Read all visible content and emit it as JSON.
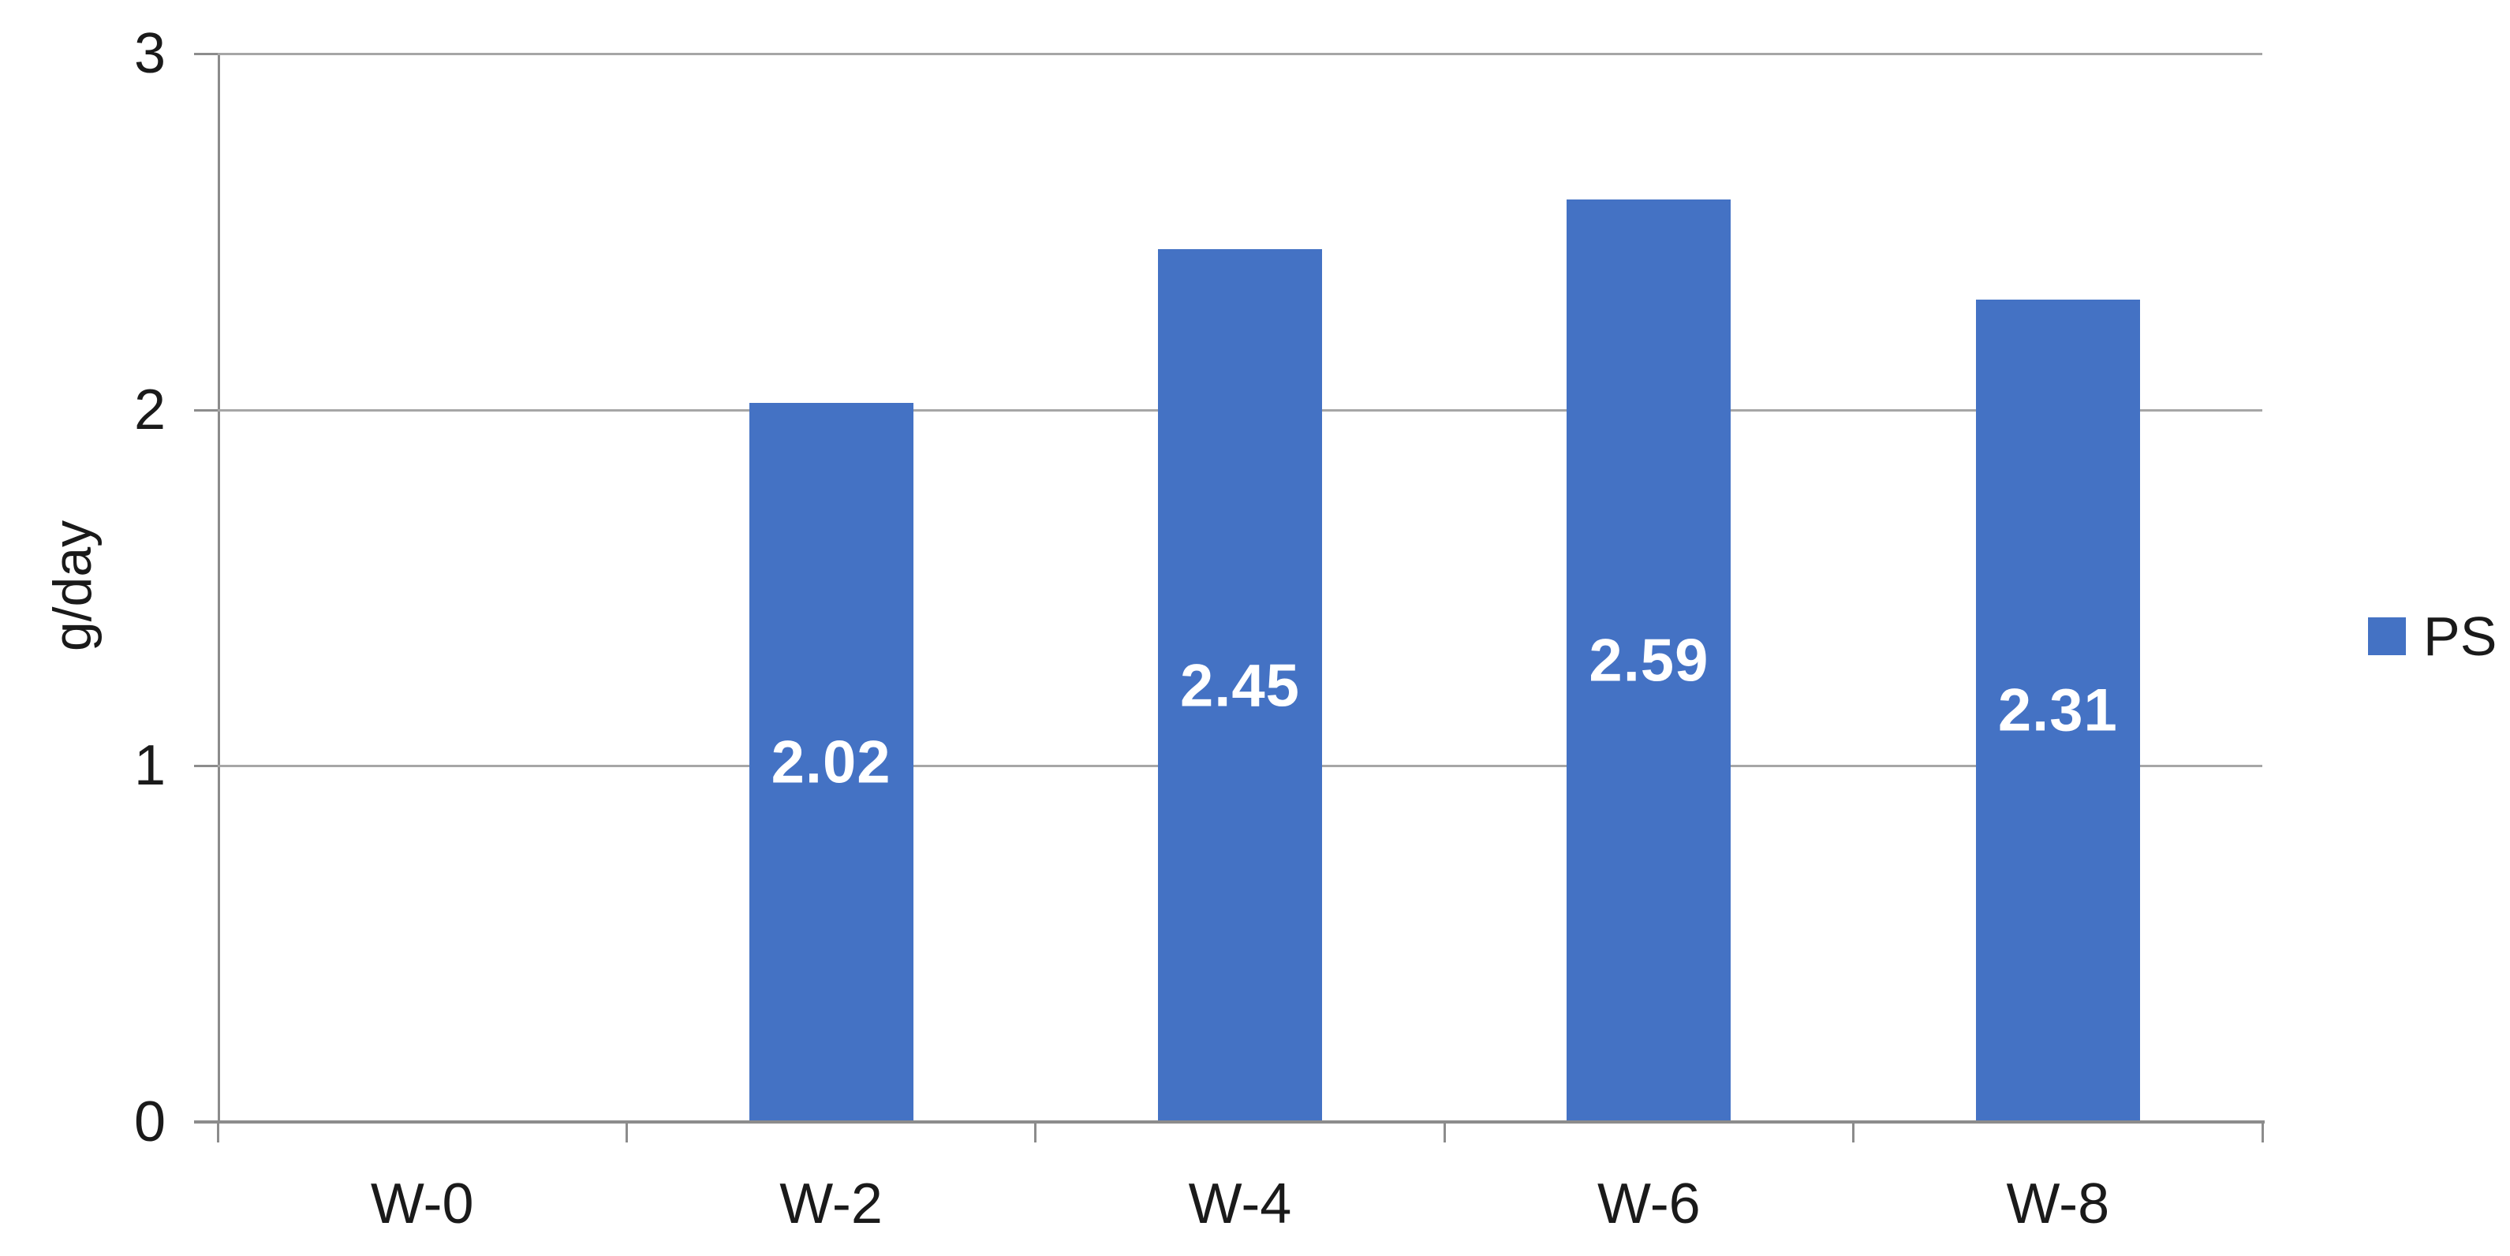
{
  "chart_data": {
    "type": "bar",
    "categories": [
      "W-0",
      "W-2",
      "W-4",
      "W-6",
      "W-8"
    ],
    "series": [
      {
        "name": "PS",
        "values": [
          0,
          2.02,
          2.45,
          2.59,
          2.31
        ],
        "labels": [
          "",
          "2.02",
          "2.45",
          "2.59",
          "2.31"
        ]
      }
    ],
    "title": "",
    "xlabel": "",
    "ylabel": "g/day",
    "ylim": [
      0,
      3
    ],
    "yticks": [
      0,
      1,
      2,
      3
    ],
    "grid": true,
    "legend_position": "right",
    "data_label_position": "inside-center",
    "colors": {
      "bar": "#4472C4",
      "data_label": "#FFFFFF",
      "gridline": "#A6A6A6",
      "axis": "#8C8C8C",
      "text": "#1A1A1A",
      "background": "#FFFFFF"
    }
  }
}
